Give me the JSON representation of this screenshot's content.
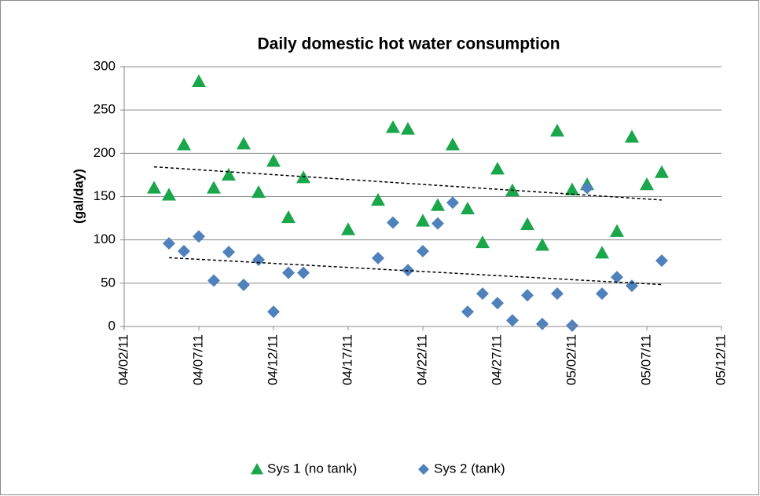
{
  "chart_data": {
    "type": "scatter",
    "title": "Daily domestic hot water consumption",
    "y_label": "(gal/day)",
    "xlim": [
      "2011-04-02",
      "2011-05-12"
    ],
    "xticks": [
      {
        "value": "2011-04-02",
        "label": "04/02/11"
      },
      {
        "value": "2011-04-07",
        "label": "04/07/11"
      },
      {
        "value": "2011-04-12",
        "label": "04/12/11"
      },
      {
        "value": "2011-04-17",
        "label": "04/17/11"
      },
      {
        "value": "2011-04-22",
        "label": "04/22/11"
      },
      {
        "value": "2011-04-27",
        "label": "04/27/11"
      },
      {
        "value": "2011-05-02",
        "label": "05/02/11"
      },
      {
        "value": "2011-05-07",
        "label": "05/07/11"
      },
      {
        "value": "2011-05-12",
        "label": "05/12/11"
      }
    ],
    "ylim": [
      0,
      300
    ],
    "yticks": [
      0,
      50,
      100,
      150,
      200,
      250,
      300
    ],
    "grid": true,
    "trendline": true,
    "legend": "bottom",
    "series": [
      {
        "name": "Sys 1 (no tank)",
        "color": "#1aa64a",
        "marker": "triangle",
        "x": [
          "2011-04-04",
          "2011-04-05",
          "2011-04-06",
          "2011-04-07",
          "2011-04-08",
          "2011-04-09",
          "2011-04-10",
          "2011-04-11",
          "2011-04-12",
          "2011-04-13",
          "2011-04-14",
          "2011-04-17",
          "2011-04-19",
          "2011-04-20",
          "2011-04-21",
          "2011-04-22",
          "2011-04-23",
          "2011-04-24",
          "2011-04-25",
          "2011-04-26",
          "2011-04-27",
          "2011-04-28",
          "2011-04-29",
          "2011-04-30",
          "2011-05-01",
          "2011-05-02",
          "2011-05-03",
          "2011-05-04",
          "2011-05-05",
          "2011-05-06",
          "2011-05-07",
          "2011-05-08"
        ],
        "values": [
          160,
          152,
          210,
          283,
          160,
          175,
          211,
          155,
          191,
          126,
          172,
          112,
          146,
          230,
          228,
          122,
          140,
          210,
          136,
          97,
          182,
          157,
          118,
          94,
          226,
          158,
          164,
          85,
          110,
          219,
          164,
          178
        ]
      },
      {
        "name": "Sys 2 (tank)",
        "color": "#4f81bd",
        "marker": "diamond",
        "x": [
          "2011-04-05",
          "2011-04-06",
          "2011-04-07",
          "2011-04-08",
          "2011-04-09",
          "2011-04-10",
          "2011-04-11",
          "2011-04-12",
          "2011-04-13",
          "2011-04-14",
          "2011-04-19",
          "2011-04-20",
          "2011-04-21",
          "2011-04-22",
          "2011-04-23",
          "2011-04-24",
          "2011-04-25",
          "2011-04-26",
          "2011-04-27",
          "2011-04-28",
          "2011-04-29",
          "2011-04-30",
          "2011-05-01",
          "2011-05-02",
          "2011-05-03",
          "2011-05-04",
          "2011-05-05",
          "2011-05-06",
          "2011-05-08"
        ],
        "values": [
          96,
          87,
          104,
          53,
          86,
          48,
          77,
          17,
          62,
          62,
          79,
          120,
          65,
          87,
          119,
          143,
          17,
          38,
          27,
          7,
          36,
          3,
          38,
          1,
          160,
          38,
          57,
          47,
          76
        ]
      }
    ]
  }
}
